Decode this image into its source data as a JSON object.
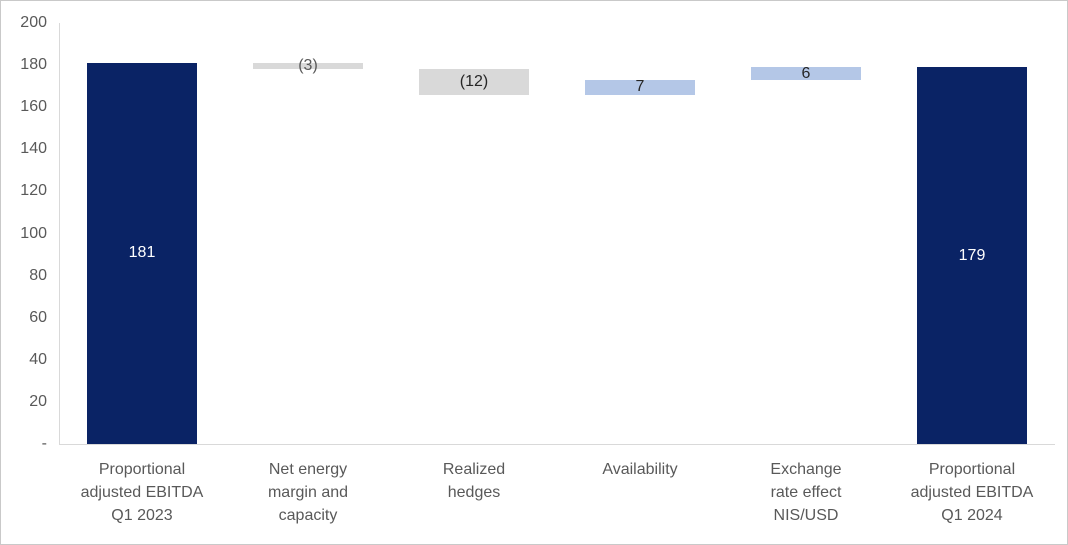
{
  "chart_data": {
    "type": "bar",
    "subtype": "waterfall",
    "title": "",
    "xlabel": "",
    "ylabel": "",
    "ylim": [
      0,
      200
    ],
    "grid": false,
    "legend": false,
    "y_ticks": [
      {
        "value": 200,
        "label": "200"
      },
      {
        "value": 180,
        "label": "180"
      },
      {
        "value": 160,
        "label": "160"
      },
      {
        "value": 140,
        "label": "140"
      },
      {
        "value": 120,
        "label": "120"
      },
      {
        "value": 100,
        "label": "100"
      },
      {
        "value": 80,
        "label": "80"
      },
      {
        "value": 60,
        "label": "60"
      },
      {
        "value": 40,
        "label": "40"
      },
      {
        "value": 20,
        "label": "20"
      },
      {
        "value": 0,
        "label": "-"
      }
    ],
    "categories": [
      "Proportional adjusted EBITDA Q1 2023",
      "Net energy margin and capacity",
      "Realized hedges",
      "Availability",
      "Exchange rate effect NIS/USD",
      "Proportional adjusted EBITDA Q1 2024"
    ],
    "values": [
      181,
      -3,
      -12,
      7,
      6,
      179
    ],
    "bars": [
      {
        "name": "proportional-adjusted-ebitda-q1-2023",
        "category_lines": [
          "Proportional",
          "adjusted EBITDA",
          "Q1 2023"
        ],
        "label": "181",
        "value": 181,
        "start": 0,
        "end": 181,
        "kind": "total",
        "label_tone": "light"
      },
      {
        "name": "net-energy-margin-and-capacity",
        "category_lines": [
          "Net energy",
          "margin and",
          "capacity"
        ],
        "label": "(3)",
        "value": -3,
        "start": 181,
        "end": 178,
        "kind": "decrease",
        "label_tone": "gray"
      },
      {
        "name": "realized-hedges",
        "category_lines": [
          "Realized",
          "hedges"
        ],
        "label": "(12)",
        "value": -12,
        "start": 178,
        "end": 166,
        "kind": "decrease",
        "label_tone": "dark"
      },
      {
        "name": "availability",
        "category_lines": [
          "Availability"
        ],
        "label": "7",
        "value": 7,
        "start": 166,
        "end": 173,
        "kind": "increase",
        "label_tone": "dark"
      },
      {
        "name": "exchange-rate-effect-nis-usd",
        "category_lines": [
          "Exchange",
          "rate effect",
          "NIS/USD"
        ],
        "label": "6",
        "value": 6,
        "start": 173,
        "end": 179,
        "kind": "increase",
        "label_tone": "dark"
      },
      {
        "name": "proportional-adjusted-ebitda-q1-2024",
        "category_lines": [
          "Proportional",
          "adjusted EBITDA",
          "Q1 2024"
        ],
        "label": "179",
        "value": 179,
        "start": 0,
        "end": 179,
        "kind": "total",
        "label_tone": "light"
      }
    ],
    "colors": {
      "total": "#0A2365",
      "decrease": "#D9D9D9",
      "increase": "#B4C7E7",
      "axis_line": "#D9D9D9",
      "tick_text": "#595959",
      "category_text": "#595959",
      "label_light": "#FFFFFF",
      "label_dark": "#262626",
      "label_gray": "#595959"
    }
  }
}
